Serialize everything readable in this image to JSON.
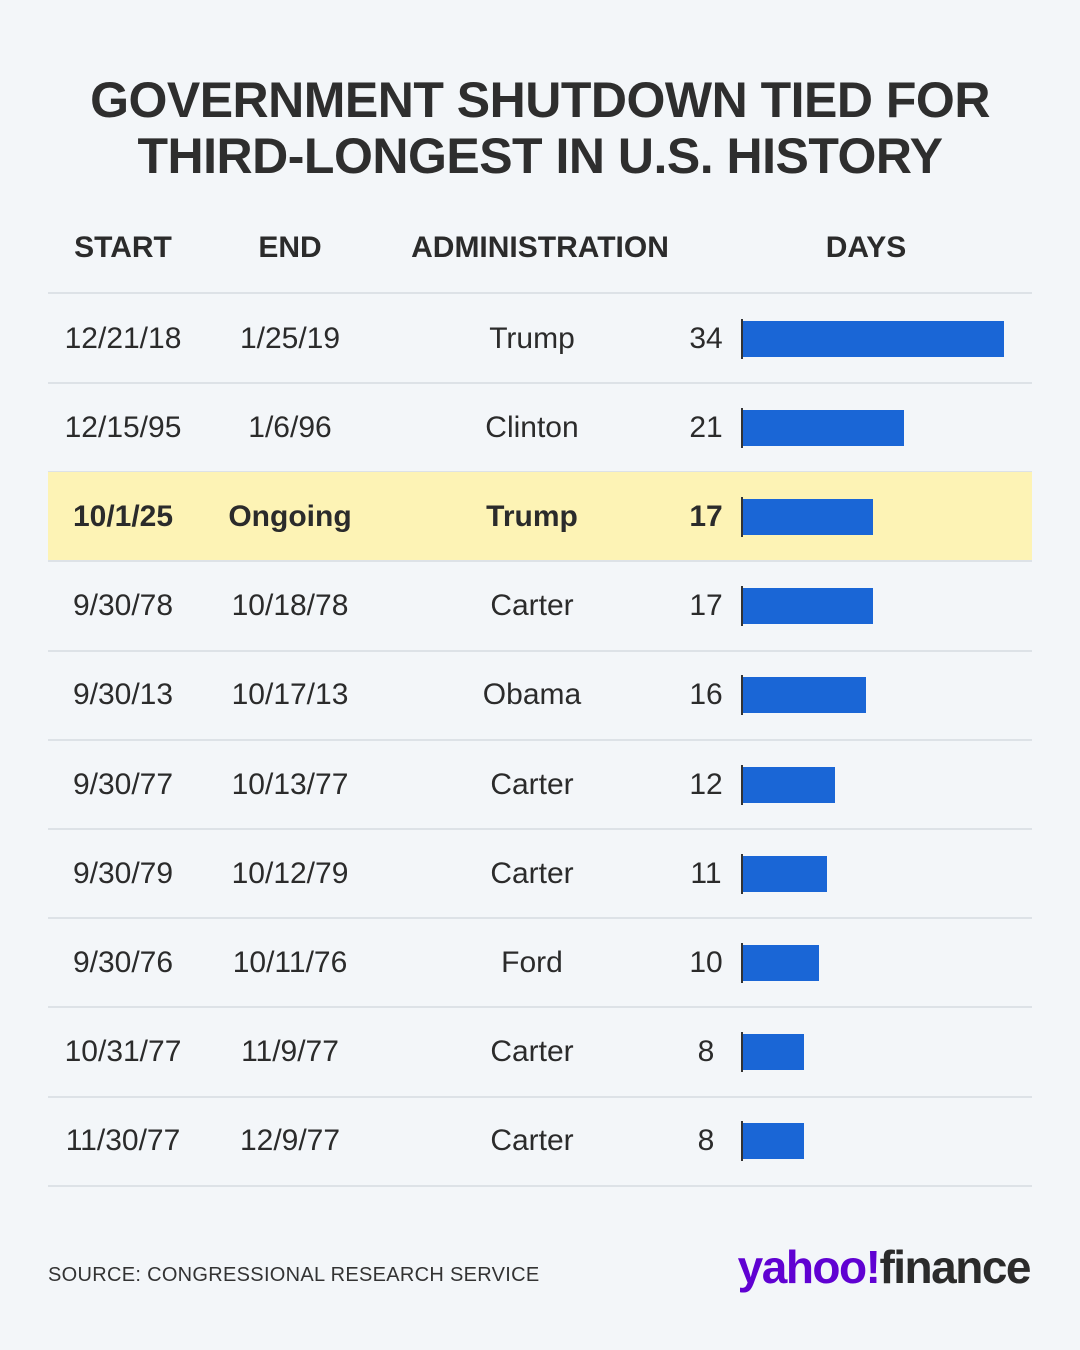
{
  "title_lines": [
    "GOVERNMENT SHUTDOWN TIED FOR",
    "THIRD-LONGEST IN U.S. HISTORY"
  ],
  "columns": [
    "START",
    "END",
    "ADMINISTRATION",
    "DAYS"
  ],
  "bar_color": "#1a66d6",
  "highlight_color": "#fdf3b5",
  "rows": [
    {
      "start": "12/21/18",
      "end": "1/25/19",
      "administration": "Trump",
      "days": 34
    },
    {
      "start": "12/15/95",
      "end": "1/6/96",
      "administration": "Clinton",
      "days": 21
    },
    {
      "start": "10/1/25",
      "end": "Ongoing",
      "administration": "Trump",
      "days": 17,
      "highlighted": true
    },
    {
      "start": "9/30/78",
      "end": "10/18/78",
      "administration": "Carter",
      "days": 17
    },
    {
      "start": "9/30/13",
      "end": "10/17/13",
      "administration": "Obama",
      "days": 16
    },
    {
      "start": "9/30/77",
      "end": "10/13/77",
      "administration": "Carter",
      "days": 12
    },
    {
      "start": "9/30/79",
      "end": "10/12/79",
      "administration": "Carter",
      "days": 11
    },
    {
      "start": "9/30/76",
      "end": "10/11/76",
      "administration": "Ford",
      "days": 10
    },
    {
      "start": "10/31/77",
      "end": "11/9/77",
      "administration": "Carter",
      "days": 8
    },
    {
      "start": "11/30/77",
      "end": "12/9/77",
      "administration": "Carter",
      "days": 8
    }
  ],
  "source": "SOURCE: CONGRESSIONAL RESEARCH SERVICE",
  "logo": {
    "brand": "yahoo!",
    "product": "finance"
  }
}
